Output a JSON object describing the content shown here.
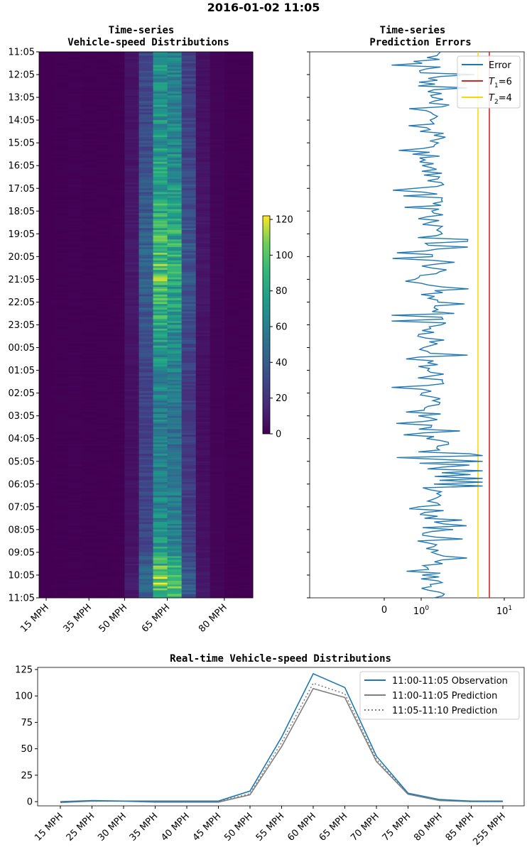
{
  "figure": {
    "suptitle": "2016-01-02 11:05"
  },
  "chart_data": [
    {
      "type": "heatmap",
      "title_line1": "Time-series",
      "title_line2": "Vehicle-speed Distributions",
      "y_tick_labels": [
        "11:05",
        "12:05",
        "13:05",
        "14:05",
        "15:05",
        "16:05",
        "17:05",
        "18:05",
        "19:05",
        "20:05",
        "21:05",
        "22:05",
        "23:05",
        "00:05",
        "01:05",
        "02:05",
        "03:05",
        "04:05",
        "05:05",
        "06:05",
        "07:05",
        "08:05",
        "09:05",
        "10:05",
        "11:05"
      ],
      "x_tick_labels": [
        "15 MPH",
        "35 MPH",
        "50 MPH",
        "65 MPH",
        "80 MPH"
      ],
      "x_tick_columns": [
        0,
        3,
        5.5,
        8.5,
        12.5
      ],
      "columns": 15,
      "column_base_profile": [
        0,
        0.5,
        0.8,
        0.5,
        0.5,
        0.5,
        9,
        40,
        90,
        80,
        35,
        8,
        2,
        0.5,
        0.5
      ],
      "colorbar": {
        "min": 0,
        "max": 122,
        "ticks": [
          0,
          20,
          40,
          60,
          80,
          100,
          120
        ],
        "colormap": "viridis"
      }
    },
    {
      "type": "line",
      "title_line1": "Time-series",
      "title_line2": "Prediction Errors",
      "x_scale": "symlog",
      "x_tick_labels": [
        "0",
        "10^0",
        "10^1"
      ],
      "series": [
        {
          "name": "Error",
          "color": "#1f77b4"
        },
        {
          "name": "T1=6",
          "value": 6,
          "color": "#d62728"
        },
        {
          "name": "T2=4",
          "value": 4,
          "color": "#ffd700"
        }
      ],
      "legend": {
        "placement": "upper right",
        "labels": [
          "Error",
          "T",
          "1",
          "=6",
          "T",
          "2",
          "=4"
        ]
      },
      "error_range": [
        0.2,
        5.5
      ]
    },
    {
      "type": "line",
      "title": "Real-time Vehicle-speed Distributions",
      "categories": [
        "15 MPH",
        "25 MPH",
        "30 MPH",
        "35 MPH",
        "40 MPH",
        "45 MPH",
        "50 MPH",
        "55 MPH",
        "60 MPH",
        "65 MPH",
        "70 MPH",
        "75 MPH",
        "80 MPH",
        "85 MPH",
        "255 MPH"
      ],
      "y_ticks": [
        0,
        25,
        50,
        75,
        100,
        125
      ],
      "ylim": [
        -4,
        127
      ],
      "series": [
        {
          "name": "11:00-11:05 Observation",
          "color": "#1f77b4",
          "dash": "",
          "values": [
            0,
            1,
            0.5,
            0.5,
            0.5,
            0.5,
            10,
            61,
            121,
            108,
            43,
            8,
            2,
            0.5,
            0.5
          ]
        },
        {
          "name": "11:00-11:05 Prediction",
          "color": "#7f7f7f",
          "dash": "",
          "values": [
            -1,
            0.5,
            0.5,
            -0.5,
            -0.5,
            -0.5,
            6.5,
            52,
            107,
            98.5,
            38,
            7,
            1,
            0,
            0
          ]
        },
        {
          "name": "11:05-11:10 Prediction",
          "color": "#7f7f7f",
          "dash": "2,3",
          "values": [
            -0.5,
            0.5,
            0.5,
            0,
            0,
            0,
            7.5,
            56,
            112,
            102,
            40,
            7.5,
            1.5,
            0,
            0
          ]
        }
      ],
      "legend": {
        "placement": "upper right"
      }
    }
  ]
}
